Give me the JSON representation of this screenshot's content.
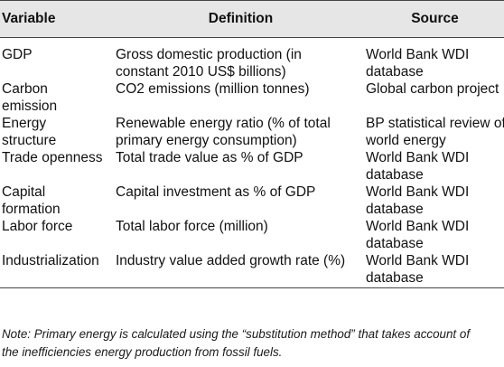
{
  "table": {
    "headers": [
      "Variable",
      "Definition",
      "Source"
    ],
    "rows": [
      {
        "variable": [
          "GDP"
        ],
        "definition": [
          "Gross domestic production (in",
          "constant 2010 US$ billions)"
        ],
        "source": [
          "World Bank WDI",
          "database"
        ]
      },
      {
        "variable": [
          "Carbon",
          "emission"
        ],
        "definition": [
          "CO2 emissions (million tonnes)"
        ],
        "source": [
          "Global carbon project"
        ]
      },
      {
        "variable": [
          "Energy",
          "structure"
        ],
        "definition": [
          "Renewable energy ratio (% of total",
          "primary energy consumption)"
        ],
        "source": [
          "BP statistical review of",
          "world energy"
        ]
      },
      {
        "variable": [
          "Trade openness"
        ],
        "definition": [
          "Total trade value as % of GDP"
        ],
        "source": [
          "World Bank WDI",
          "database"
        ]
      },
      {
        "variable": [
          "Capital",
          "formation"
        ],
        "definition": [
          "Capital investment as % of GDP"
        ],
        "source": [
          "World Bank WDI",
          "database"
        ]
      },
      {
        "variable": [
          "Labor force"
        ],
        "definition": [
          "Total labor force (million)"
        ],
        "source": [
          "World Bank WDI",
          "database"
        ]
      },
      {
        "variable": [
          "Industrialization"
        ],
        "definition": [
          "Industry value added growth rate (%)"
        ],
        "source": [
          "World Bank WDI",
          "database"
        ]
      }
    ]
  },
  "note": {
    "line1": "Note: Primary energy is calculated using the “substitution method” that takes account of",
    "line2": "the inefficiencies energy production from fossil fuels."
  }
}
